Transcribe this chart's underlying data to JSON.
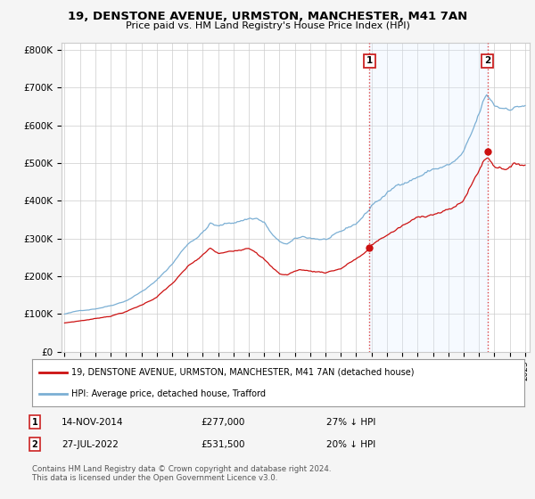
{
  "title": "19, DENSTONE AVENUE, URMSTON, MANCHESTER, M41 7AN",
  "subtitle": "Price paid vs. HM Land Registry's House Price Index (HPI)",
  "ylabel_ticks": [
    "£0",
    "£100K",
    "£200K",
    "£300K",
    "£400K",
    "£500K",
    "£600K",
    "£700K",
    "£800K"
  ],
  "ytick_values": [
    0,
    100000,
    200000,
    300000,
    400000,
    500000,
    600000,
    700000,
    800000
  ],
  "ylim": [
    0,
    820000
  ],
  "xlim_start": 1994.8,
  "xlim_end": 2025.3,
  "marker1_x": 2014.87,
  "marker1_y": 277000,
  "marker1_label": "1",
  "marker1_date": "14-NOV-2014",
  "marker1_price": "£277,000",
  "marker1_hpi": "27% ↓ HPI",
  "marker2_x": 2022.55,
  "marker2_y": 531500,
  "marker2_label": "2",
  "marker2_date": "27-JUL-2022",
  "marker2_price": "£531,500",
  "marker2_hpi": "20% ↓ HPI",
  "vline_color": "#dd4444",
  "vline_style": ":",
  "red_line_color": "#cc1111",
  "blue_line_color": "#7bafd4",
  "shade_color": "#ddeeff",
  "background_color": "#f5f5f5",
  "plot_bg_color": "#ffffff",
  "grid_color": "#cccccc",
  "legend_label_red": "19, DENSTONE AVENUE, URMSTON, MANCHESTER, M41 7AN (detached house)",
  "legend_label_blue": "HPI: Average price, detached house, Trafford",
  "footer_text": "Contains HM Land Registry data © Crown copyright and database right 2024.\nThis data is licensed under the Open Government Licence v3.0."
}
